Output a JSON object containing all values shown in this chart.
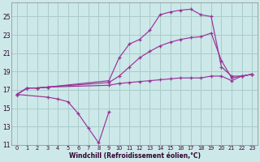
{
  "bg_color": "#cce8e8",
  "grid_color": "#aacccc",
  "line_color": "#993399",
  "xlabel": "Windchill (Refroidissement éolien,°C)",
  "xlim": [
    -0.5,
    23.5
  ],
  "ylim": [
    11,
    26.5
  ],
  "yticks": [
    11,
    13,
    15,
    17,
    19,
    21,
    23,
    25
  ],
  "xticks": [
    0,
    1,
    2,
    3,
    4,
    5,
    6,
    7,
    8,
    9,
    10,
    11,
    12,
    13,
    14,
    15,
    16,
    17,
    18,
    19,
    20,
    21,
    22,
    23
  ],
  "line1": [
    [
      0,
      16.5
    ],
    [
      1,
      17.2
    ],
    [
      2,
      17.2
    ],
    [
      3,
      17.3
    ],
    [
      9,
      18.0
    ],
    [
      10,
      20.5
    ],
    [
      11,
      22.0
    ],
    [
      12,
      22.5
    ],
    [
      13,
      23.5
    ],
    [
      14,
      25.2
    ],
    [
      15,
      25.5
    ],
    [
      16,
      25.7
    ],
    [
      17,
      25.8
    ],
    [
      18,
      25.2
    ],
    [
      19,
      25.0
    ],
    [
      20,
      19.5
    ],
    [
      21,
      18.5
    ],
    [
      22,
      18.5
    ],
    [
      23,
      18.7
    ]
  ],
  "line2": [
    [
      0,
      16.5
    ],
    [
      1,
      17.2
    ],
    [
      2,
      17.2
    ],
    [
      3,
      17.3
    ],
    [
      9,
      17.8
    ],
    [
      10,
      18.5
    ],
    [
      11,
      19.5
    ],
    [
      12,
      20.5
    ],
    [
      13,
      21.2
    ],
    [
      14,
      21.8
    ],
    [
      15,
      22.2
    ],
    [
      16,
      22.5
    ],
    [
      17,
      22.7
    ],
    [
      18,
      22.8
    ],
    [
      19,
      23.2
    ],
    [
      20,
      20.2
    ],
    [
      21,
      18.3
    ],
    [
      22,
      18.5
    ],
    [
      23,
      18.7
    ]
  ],
  "line3": [
    [
      0,
      16.5
    ],
    [
      1,
      17.2
    ],
    [
      2,
      17.2
    ],
    [
      3,
      17.3
    ],
    [
      9,
      17.5
    ],
    [
      10,
      17.7
    ],
    [
      11,
      17.8
    ],
    [
      12,
      17.9
    ],
    [
      13,
      18.0
    ],
    [
      14,
      18.1
    ],
    [
      15,
      18.2
    ],
    [
      16,
      18.3
    ],
    [
      17,
      18.3
    ],
    [
      18,
      18.3
    ],
    [
      19,
      18.5
    ],
    [
      20,
      18.5
    ],
    [
      21,
      18.0
    ],
    [
      22,
      18.5
    ],
    [
      23,
      18.7
    ]
  ],
  "line4": [
    [
      0,
      16.5
    ],
    [
      3,
      16.2
    ],
    [
      4,
      16.0
    ],
    [
      5,
      15.7
    ],
    [
      6,
      14.4
    ],
    [
      7,
      12.8
    ],
    [
      8,
      11.2
    ],
    [
      9,
      14.6
    ]
  ]
}
